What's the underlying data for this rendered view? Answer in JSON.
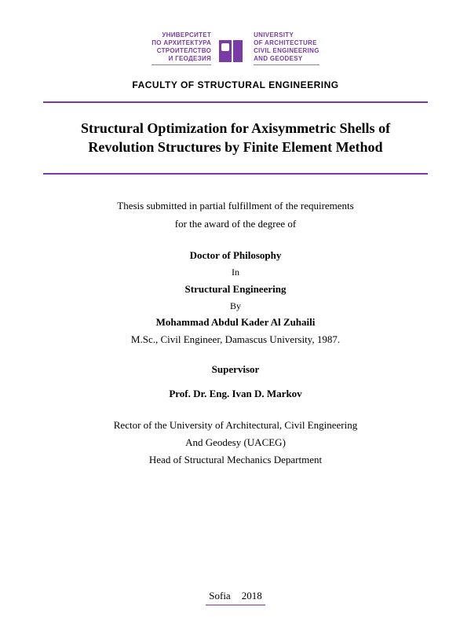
{
  "logo": {
    "left_l1": "УНИВЕРСИТЕТ",
    "left_l2": "ПО АРХИТЕКТУРА",
    "left_l3": "СТРОИТЕЛСТВО",
    "left_l4": "И ГЕОДЕЗИЯ",
    "right_l1": "UNIVERSITY",
    "right_l2": "OF ARCHITECTURE",
    "right_l3": "CIVIL ENGINEERING",
    "right_l4": "AND GEODESY"
  },
  "faculty": "FACULTY OF STRUCTURAL ENGINEERING",
  "title_l1": "Structural Optimization for Axisymmetric Shells of",
  "title_l2": "Revolution Structures by Finite Element Method",
  "submission_l1": "Thesis submitted in partial fulfillment of the requirements",
  "submission_l2": "for the award of the degree of",
  "degree": "Doctor of Philosophy",
  "in_word": "In",
  "field": "Structural Engineering",
  "by_word": "By",
  "author": "Mohammad Abdul Kader Al Zuhaili",
  "author_cred": "M.Sc., Civil Engineer, Damascus University, 1987.",
  "supervisor_heading": "Supervisor",
  "supervisor_name": "Prof. Dr. Eng. Ivan D. Markov",
  "supervisor_l1": "Rector of the University of Architectural, Civil Engineering",
  "supervisor_l2": "And Geodesy (UACEG)",
  "supervisor_l3": "Head of Structural Mechanics Department",
  "place": "Sofia",
  "year": "2018",
  "colors": {
    "accent": "#7a3aa8",
    "text": "#000000",
    "background": "#ffffff"
  }
}
